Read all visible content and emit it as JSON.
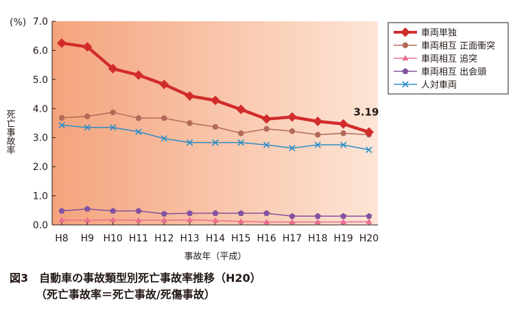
{
  "chart_data": {
    "type": "line",
    "unit_label": "(%)",
    "ylabel": "死亡事故率",
    "xlabel": "事故年（平成）",
    "categories": [
      "H8",
      "H9",
      "H10",
      "H11",
      "H12",
      "H13",
      "H14",
      "H15",
      "H16",
      "H17",
      "H18",
      "H19",
      "H20"
    ],
    "ylim": [
      0,
      7
    ],
    "yticks": [
      "0.0",
      "1.0",
      "2.0",
      "3.0",
      "4.0",
      "5.0",
      "6.0",
      "7.0"
    ],
    "grid": false,
    "legend_position": "top-right",
    "series": [
      {
        "name": "車両単独",
        "color": "#d12c2c",
        "marker": "diamond",
        "width": 4.5,
        "values": [
          6.25,
          6.12,
          5.37,
          5.15,
          4.83,
          4.43,
          4.28,
          3.97,
          3.64,
          3.71,
          3.56,
          3.47,
          3.19
        ]
      },
      {
        "name": "車両相互 正面衝突",
        "color": "#b36a58",
        "marker": "circle",
        "width": 1.5,
        "values": [
          3.68,
          3.73,
          3.87,
          3.67,
          3.67,
          3.5,
          3.37,
          3.15,
          3.3,
          3.22,
          3.1,
          3.15,
          3.1
        ]
      },
      {
        "name": "車両相互 追突",
        "color": "#ea6d8f",
        "marker": "triangle",
        "width": 1.5,
        "values": [
          0.17,
          0.16,
          0.17,
          0.16,
          0.16,
          0.17,
          0.15,
          0.12,
          0.1,
          0.1,
          0.1,
          0.1,
          0.11
        ]
      },
      {
        "name": "車両相互 出会頭",
        "color": "#8252a2",
        "marker": "pentagon",
        "width": 1.5,
        "values": [
          0.48,
          0.55,
          0.48,
          0.48,
          0.38,
          0.4,
          0.4,
          0.4,
          0.4,
          0.3,
          0.3,
          0.3,
          0.3
        ]
      },
      {
        "name": "人対車両",
        "color": "#2a8cc6",
        "marker": "x",
        "width": 1.5,
        "values": [
          3.43,
          3.35,
          3.35,
          3.2,
          2.97,
          2.83,
          2.83,
          2.83,
          2.75,
          2.64,
          2.75,
          2.75,
          2.58
        ]
      }
    ],
    "annotation": {
      "text": "3.19",
      "series": 0,
      "index": 12
    },
    "caption_line1": "図3　自動車の事故類型別死亡事故率推移（H20）",
    "caption_line2": "（死亡事故率＝死亡事故/死傷事故）",
    "colors": {
      "bg_left": "#f4a37c",
      "bg_right": "#fde5d6"
    }
  }
}
